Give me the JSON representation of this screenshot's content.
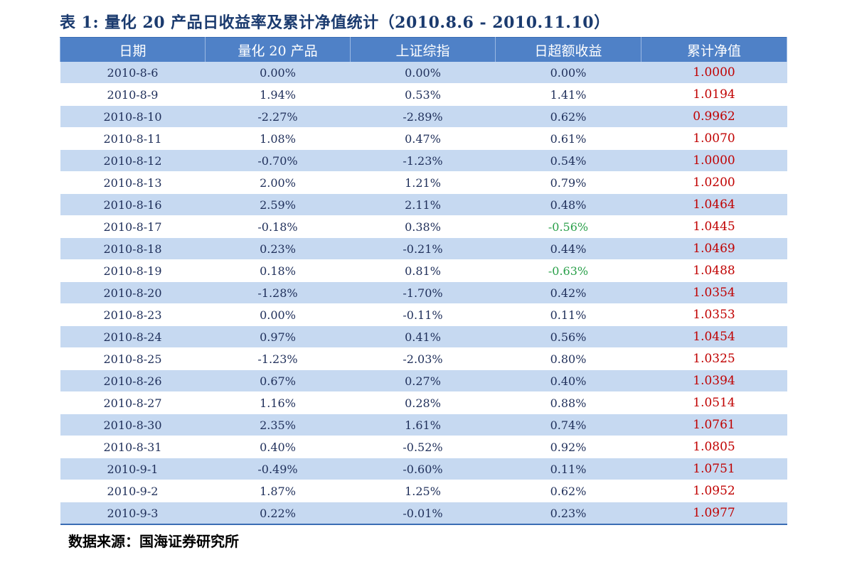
{
  "caption": "表 1: 量化 20 产品日收益率及累计净值统计（2010.8.6 - 2010.11.10）",
  "headers": [
    "日期",
    "量化 20 产品",
    "上证综指",
    "日超额收益",
    "累计净值"
  ],
  "rows": [
    [
      "2010-8-6",
      "0.00%",
      "0.00%",
      "0.00%",
      "1.0000"
    ],
    [
      "2010-8-9",
      "1.94%",
      "0.53%",
      "1.41%",
      "1.0194"
    ],
    [
      "2010-8-10",
      "-2.27%",
      "-2.89%",
      "0.62%",
      "0.9962"
    ],
    [
      "2010-8-11",
      "1.08%",
      "0.47%",
      "0.61%",
      "1.0070"
    ],
    [
      "2010-8-12",
      "-0.70%",
      "-1.23%",
      "0.54%",
      "1.0000"
    ],
    [
      "2010-8-13",
      "2.00%",
      "1.21%",
      "0.79%",
      "1.0200"
    ],
    [
      "2010-8-16",
      "2.59%",
      "2.11%",
      "0.48%",
      "1.0464"
    ],
    [
      "2010-8-17",
      "-0.18%",
      "0.38%",
      "-0.56%",
      "1.0445"
    ],
    [
      "2010-8-18",
      "0.23%",
      "-0.21%",
      "0.44%",
      "1.0469"
    ],
    [
      "2010-8-19",
      "0.18%",
      "0.81%",
      "-0.63%",
      "1.0488"
    ],
    [
      "2010-8-20",
      "-1.28%",
      "-1.70%",
      "0.42%",
      "1.0354"
    ],
    [
      "2010-8-23",
      "0.00%",
      "-0.11%",
      "0.11%",
      "1.0353"
    ],
    [
      "2010-8-24",
      "0.97%",
      "0.41%",
      "0.56%",
      "1.0454"
    ],
    [
      "2010-8-25",
      "-1.23%",
      "-2.03%",
      "0.80%",
      "1.0325"
    ],
    [
      "2010-8-26",
      "0.67%",
      "0.27%",
      "0.40%",
      "1.0394"
    ],
    [
      "2010-8-27",
      "1.16%",
      "0.28%",
      "0.88%",
      "1.0514"
    ],
    [
      "2010-8-30",
      "2.35%",
      "1.61%",
      "0.74%",
      "1.0761"
    ],
    [
      "2010-8-31",
      "0.40%",
      "-0.52%",
      "0.92%",
      "1.0805"
    ],
    [
      "2010-9-1",
      "-0.49%",
      "-0.60%",
      "0.11%",
      "1.0751"
    ],
    [
      "2010-9-2",
      "1.87%",
      "1.25%",
      "0.62%",
      "1.0952"
    ],
    [
      "2010-9-3",
      "0.22%",
      "-0.01%",
      "0.23%",
      "1.0977"
    ]
  ],
  "source": "数据来源：国海证券研究所",
  "colors": {
    "header_bg": "#4f81c7",
    "stripe_bg": "#c6d9f1",
    "nav_text": "#c00000",
    "negative_excess_text": "#2aa04a"
  }
}
